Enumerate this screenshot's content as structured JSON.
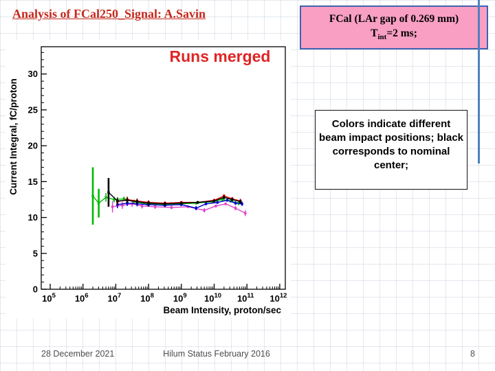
{
  "slide": {
    "title": "Analysis of FCal250_Signal: A.Savin",
    "header_box": {
      "line1": "FCal (LAr gap of 0.269 mm)",
      "tint_pre": "T",
      "tint_sub": "int",
      "tint_post": "=2 ms;"
    },
    "note_box": {
      "text": "Colors indicate different beam impact positions; black corresponds to nominal center;"
    },
    "footer": {
      "date": "28 December 2021",
      "status": "Hilum Status February 2016",
      "page": "8"
    }
  },
  "chart_data": {
    "type": "line",
    "title": "Runs merged",
    "title_color": "#e02424",
    "xlabel": "Beam Intensity, proton/sec",
    "ylabel": "Current Integral, fC/proton",
    "x_scale": "log10",
    "xlim_log10": [
      5,
      12
    ],
    "ylim": [
      0,
      33.8
    ],
    "yticks": [
      0,
      5,
      10,
      15,
      20,
      25,
      30
    ],
    "xticks_log10": [
      5,
      6,
      7,
      8,
      9,
      10,
      11,
      12
    ],
    "grid": false,
    "legend": "none",
    "series": [
      {
        "name": "green",
        "color": "#00bb00",
        "x_log10": [
          6.3,
          6.48,
          6.7,
          6.95,
          7.25,
          7.55,
          7.95,
          8.45,
          8.95,
          9.45,
          9.95,
          10.25,
          10.5,
          10.75
        ],
        "y": [
          13.0,
          12.0,
          12.8,
          12.5,
          12.6,
          12.2,
          11.9,
          11.8,
          11.9,
          12.0,
          12.2,
          12.5,
          12.3,
          12.0
        ],
        "yerr": [
          4.0,
          2.0,
          0.6,
          0.4,
          0.3,
          0.3,
          0.25,
          0.2,
          0.2,
          0.2,
          0.2,
          0.2,
          0.25,
          0.3
        ]
      },
      {
        "name": "magenta",
        "color": "#dd44cc",
        "x_log10": [
          6.9,
          7.2,
          7.5,
          7.8,
          8.2,
          8.7,
          9.2,
          9.7,
          10.05,
          10.35,
          10.65,
          10.95
        ],
        "y": [
          11.5,
          11.7,
          11.9,
          11.6,
          11.5,
          11.4,
          11.5,
          11.0,
          11.6,
          11.9,
          11.3,
          10.6
        ],
        "yerr": [
          0.8,
          0.5,
          0.4,
          0.35,
          0.3,
          0.25,
          0.2,
          0.3,
          0.2,
          0.2,
          0.3,
          0.4
        ]
      },
      {
        "name": "blue",
        "color": "#0000cc",
        "x_log10": [
          7.05,
          7.35,
          7.65,
          8.0,
          8.5,
          9.0,
          9.45,
          9.75,
          10.1,
          10.4,
          10.65,
          10.85
        ],
        "y": [
          11.8,
          12.0,
          11.9,
          11.8,
          11.7,
          11.8,
          11.3,
          11.9,
          12.1,
          12.4,
          12.0,
          11.9
        ],
        "yerr": [
          0.5,
          0.4,
          0.35,
          0.3,
          0.25,
          0.2,
          0.3,
          0.2,
          0.2,
          0.2,
          0.25,
          0.3
        ]
      },
      {
        "name": "red",
        "color": "#dd0000",
        "x_log10": [
          7.05,
          7.35,
          7.65,
          8.0,
          8.5,
          9.0,
          9.5,
          10.0,
          10.3,
          10.55,
          10.8
        ],
        "y": [
          12.2,
          12.5,
          12.3,
          12.1,
          12.0,
          12.1,
          12.1,
          12.4,
          13.0,
          12.6,
          12.3
        ],
        "yerr": [
          0.5,
          0.4,
          0.35,
          0.3,
          0.25,
          0.2,
          0.2,
          0.2,
          0.25,
          0.25,
          0.3
        ]
      },
      {
        "name": "black",
        "color": "#000000",
        "x_log10": [
          6.78,
          7.05,
          7.35,
          7.65,
          8.0,
          8.5,
          9.0,
          9.5,
          10.0,
          10.3,
          10.55,
          10.8
        ],
        "y": [
          13.5,
          12.3,
          12.4,
          12.2,
          12.0,
          11.9,
          12.0,
          12.1,
          12.3,
          12.8,
          12.5,
          12.2
        ],
        "yerr": [
          2.0,
          0.5,
          0.4,
          0.35,
          0.3,
          0.25,
          0.2,
          0.2,
          0.2,
          0.25,
          0.25,
          0.3
        ]
      }
    ]
  }
}
